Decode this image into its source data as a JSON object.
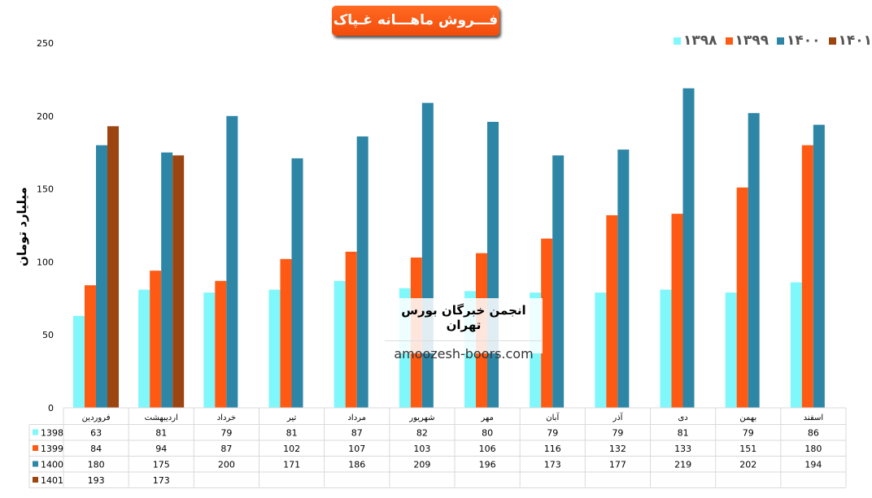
{
  "chart_data": {
    "type": "bar",
    "title": "فـــروش ماهـــانه غـپاک",
    "ylabel": "میلیارد تومان",
    "xlabel": "",
    "ylim": [
      0,
      250
    ],
    "yticks": [
      0,
      50,
      100,
      150,
      200,
      250
    ],
    "grid": false,
    "legend_position": "top-right",
    "categories": [
      "فروردین",
      "اردیبهشت",
      "خرداد",
      "تیر",
      "مرداد",
      "شهریور",
      "مهر",
      "آبان",
      "آذر",
      "دی",
      "بهمن",
      "اسفند"
    ],
    "series": [
      {
        "name": "1398",
        "legend_label": "۱۳۹۸",
        "color": "#7ff7fb",
        "values": [
          63,
          81,
          79,
          81,
          87,
          82,
          80,
          79,
          79,
          81,
          79,
          86
        ]
      },
      {
        "name": "1399",
        "legend_label": "۱۳۹۹",
        "color": "#ff5a14",
        "values": [
          84,
          94,
          87,
          102,
          107,
          103,
          106,
          116,
          132,
          133,
          151,
          180
        ]
      },
      {
        "name": "1400",
        "legend_label": "۱۴۰۰",
        "color": "#2e86a6",
        "values": [
          180,
          175,
          200,
          171,
          186,
          209,
          196,
          173,
          177,
          219,
          202,
          194
        ]
      },
      {
        "name": "1401",
        "legend_label": "۱۴۰۱",
        "color": "#9c4511",
        "values": [
          193,
          173,
          null,
          null,
          null,
          null,
          null,
          null,
          null,
          null,
          null,
          null
        ]
      }
    ],
    "data_table": true
  },
  "watermark": {
    "line1": "انجمن خبرگان بورس تهران",
    "line2": "amoozesh-boors.com"
  }
}
